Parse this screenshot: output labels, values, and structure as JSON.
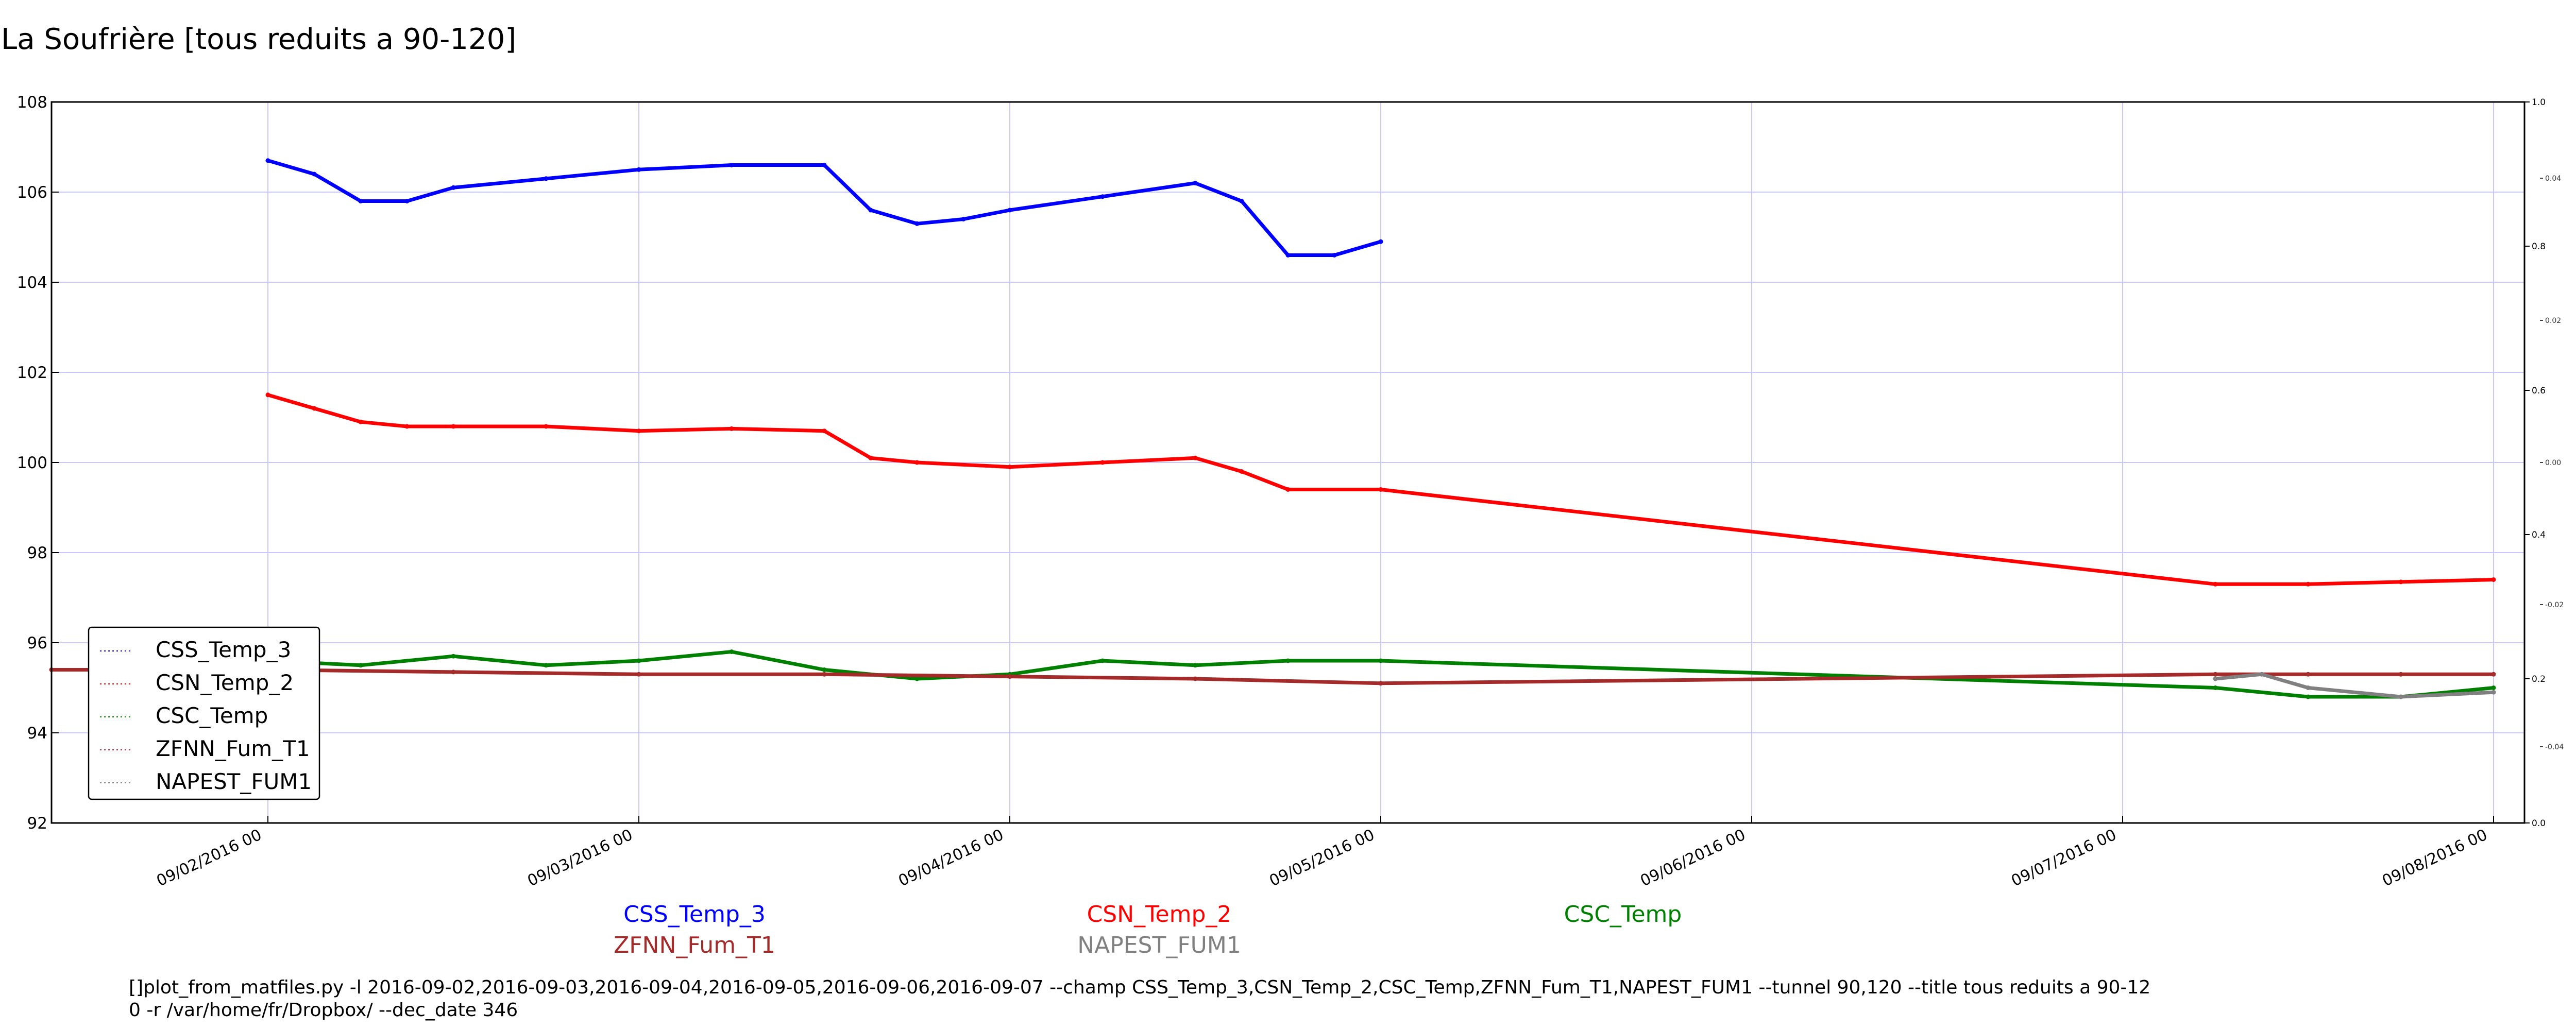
{
  "chart_data": {
    "type": "line",
    "title": "La Soufrière [tous reduits a 90-120]",
    "xlabel": "",
    "ylabel": "",
    "xlim": [
      "2016-09-01 10:00",
      "2016-09-08 02:00"
    ],
    "ylim": [
      92,
      108
    ],
    "yticks": [
      92,
      94,
      96,
      98,
      100,
      102,
      104,
      106,
      108
    ],
    "xticks": [
      "2016-09-02 00:00",
      "2016-09-03 00:00",
      "2016-09-04 00:00",
      "2016-09-05 00:00",
      "2016-09-06 00:00",
      "2016-09-07 00:00",
      "2016-09-08 00:00"
    ],
    "xtick_labels": [
      "09/02/2016 00",
      "09/03/2016 00",
      "09/04/2016 00",
      "09/05/2016 00",
      "09/06/2016 00",
      "09/07/2016 00",
      "09/08/2016 00"
    ],
    "y2lim": [
      0,
      1
    ],
    "y2ticks": [
      "0.0",
      "0.2",
      "0.4",
      "0.6",
      "0.8",
      "1.0"
    ],
    "y3ticks": [
      "-0.04",
      "-0.02",
      "0.00",
      "0.02",
      "0.04"
    ],
    "grid": true,
    "legend_position": "lower-left",
    "series": [
      {
        "name": "CSS_Temp_3",
        "color": "#0000ff",
        "x": [
          "2016-09-02 00:00",
          "2016-09-02 03:00",
          "2016-09-02 06:00",
          "2016-09-02 09:00",
          "2016-09-02 12:00",
          "2016-09-02 18:00",
          "2016-09-03 00:00",
          "2016-09-03 06:00",
          "2016-09-03 12:00",
          "2016-09-03 15:00",
          "2016-09-03 18:00",
          "2016-09-03 21:00",
          "2016-09-04 00:00",
          "2016-09-04 06:00",
          "2016-09-04 12:00",
          "2016-09-04 15:00",
          "2016-09-04 18:00",
          "2016-09-04 21:00",
          "2016-09-05 00:00"
        ],
        "y": [
          106.7,
          106.4,
          105.8,
          105.8,
          106.1,
          106.3,
          106.5,
          106.6,
          106.6,
          105.6,
          105.3,
          105.4,
          105.6,
          105.9,
          106.2,
          105.8,
          104.6,
          104.6,
          104.9
        ]
      },
      {
        "name": "CSN_Temp_2",
        "color": "#ff0000",
        "x": [
          "2016-09-02 00:00",
          "2016-09-02 03:00",
          "2016-09-02 06:00",
          "2016-09-02 09:00",
          "2016-09-02 12:00",
          "2016-09-02 18:00",
          "2016-09-03 00:00",
          "2016-09-03 06:00",
          "2016-09-03 12:00",
          "2016-09-03 15:00",
          "2016-09-03 18:00",
          "2016-09-04 00:00",
          "2016-09-04 06:00",
          "2016-09-04 12:00",
          "2016-09-04 15:00",
          "2016-09-04 18:00",
          "2016-09-05 00:00",
          "2016-09-07 06:00",
          "2016-09-07 12:00",
          "2016-09-07 18:00",
          "2016-09-08 00:00"
        ],
        "y": [
          101.5,
          101.2,
          100.9,
          100.8,
          100.8,
          100.8,
          100.7,
          100.75,
          100.7,
          100.1,
          100.0,
          99.9,
          100.0,
          100.1,
          99.8,
          99.4,
          99.4,
          97.3,
          97.3,
          97.35,
          97.4
        ]
      },
      {
        "name": "CSC_Temp",
        "color": "#008000",
        "x": [
          "2016-09-02 00:00",
          "2016-09-02 06:00",
          "2016-09-02 12:00",
          "2016-09-02 18:00",
          "2016-09-03 00:00",
          "2016-09-03 06:00",
          "2016-09-03 12:00",
          "2016-09-03 18:00",
          "2016-09-04 00:00",
          "2016-09-04 06:00",
          "2016-09-04 12:00",
          "2016-09-04 18:00",
          "2016-09-05 00:00",
          "2016-09-07 06:00",
          "2016-09-07 12:00",
          "2016-09-07 18:00",
          "2016-09-08 00:00"
        ],
        "y": [
          95.6,
          95.5,
          95.7,
          95.5,
          95.6,
          95.8,
          95.4,
          95.2,
          95.3,
          95.6,
          95.5,
          95.6,
          95.6,
          95.0,
          94.8,
          94.8,
          95.0
        ]
      },
      {
        "name": "ZFNN_Fum_T1",
        "color": "#a52a2a",
        "x": [
          "2016-09-01 10:00",
          "2016-09-02 00:00",
          "2016-09-02 12:00",
          "2016-09-03 00:00",
          "2016-09-03 12:00",
          "2016-09-04 00:00",
          "2016-09-04 12:00",
          "2016-09-05 00:00",
          "2016-09-07 06:00",
          "2016-09-07 12:00",
          "2016-09-07 18:00",
          "2016-09-08 00:00"
        ],
        "y": [
          95.4,
          95.4,
          95.35,
          95.3,
          95.3,
          95.25,
          95.2,
          95.1,
          95.3,
          95.3,
          95.3,
          95.3
        ]
      },
      {
        "name": "NAPEST_FUM1",
        "color": "#808080",
        "x": [
          "2016-09-07 06:00",
          "2016-09-07 09:00",
          "2016-09-07 12:00",
          "2016-09-07 18:00",
          "2016-09-08 00:00"
        ],
        "y": [
          95.2,
          95.3,
          95.0,
          94.8,
          94.9
        ]
      }
    ],
    "bottom_labels": [
      "CSS_Temp_3",
      "CSN_Temp_2",
      "CSC_Temp",
      "ZFNN_Fum_T1",
      "NAPEST_FUM1"
    ]
  },
  "command_line_1": "[]plot_from_matfiles.py -l 2016-09-02,2016-09-03,2016-09-04,2016-09-05,2016-09-06,2016-09-07 --champ CSS_Temp_3,CSN_Temp_2,CSC_Temp,ZFNN_Fum_T1,NAPEST_FUM1 --tunnel 90,120 --title tous reduits a 90-12",
  "command_line_2": "0 -r /var/home/fr/Dropbox/ --dec_date 346"
}
